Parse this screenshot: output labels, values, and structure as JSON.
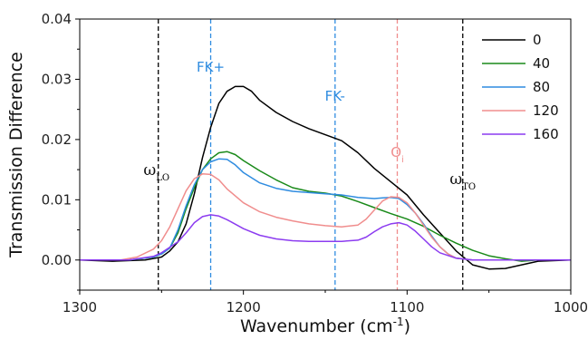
{
  "chart_data": {
    "type": "line",
    "title": "",
    "xlabel": "Wavenumber (cm",
    "xlabel_sup": "-1",
    "xlabel_close": ")",
    "ylabel": "Transmission Difference",
    "xlim": [
      1300,
      1000
    ],
    "ylim": [
      -0.005,
      0.04
    ],
    "x_reversed": true,
    "grid": false,
    "legend_position": "top-right",
    "x_ticks": [
      1300,
      1200,
      1100,
      1000
    ],
    "x_tick_labels": [
      "1300",
      "1200",
      "1100",
      "1000"
    ],
    "y_ticks": [
      0.0,
      0.01,
      0.02,
      0.03,
      0.04
    ],
    "y_tick_labels": [
      "0.00",
      "0.01",
      "0.02",
      "0.03",
      "0.04"
    ],
    "series": [
      {
        "name": "0",
        "color": "#000000",
        "points": [
          [
            1300,
            0
          ],
          [
            1280,
            -0.0002
          ],
          [
            1260,
            0
          ],
          [
            1250,
            0.0005
          ],
          [
            1245,
            0.0015
          ],
          [
            1240,
            0.003
          ],
          [
            1235,
            0.006
          ],
          [
            1230,
            0.011
          ],
          [
            1225,
            0.017
          ],
          [
            1220,
            0.022
          ],
          [
            1215,
            0.026
          ],
          [
            1210,
            0.028
          ],
          [
            1205,
            0.0288
          ],
          [
            1200,
            0.0288
          ],
          [
            1195,
            0.028
          ],
          [
            1190,
            0.0265
          ],
          [
            1180,
            0.0245
          ],
          [
            1170,
            0.023
          ],
          [
            1160,
            0.0218
          ],
          [
            1150,
            0.0208
          ],
          [
            1140,
            0.0198
          ],
          [
            1130,
            0.0178
          ],
          [
            1120,
            0.0152
          ],
          [
            1110,
            0.013
          ],
          [
            1100,
            0.0108
          ],
          [
            1090,
            0.0075
          ],
          [
            1080,
            0.0045
          ],
          [
            1070,
            0.0015
          ],
          [
            1060,
            -0.0008
          ],
          [
            1050,
            -0.0015
          ],
          [
            1040,
            -0.0014
          ],
          [
            1030,
            -0.0008
          ],
          [
            1020,
            -0.0002
          ],
          [
            1000,
            0
          ]
        ]
      },
      {
        "name": "40",
        "color": "#1a8a1a",
        "points": [
          [
            1300,
            0
          ],
          [
            1270,
            0
          ],
          [
            1255,
            0.0005
          ],
          [
            1250,
            0.001
          ],
          [
            1245,
            0.002
          ],
          [
            1240,
            0.0045
          ],
          [
            1235,
            0.0085
          ],
          [
            1230,
            0.012
          ],
          [
            1225,
            0.015
          ],
          [
            1220,
            0.0168
          ],
          [
            1215,
            0.0178
          ],
          [
            1210,
            0.018
          ],
          [
            1205,
            0.0175
          ],
          [
            1200,
            0.0165
          ],
          [
            1190,
            0.0148
          ],
          [
            1180,
            0.0133
          ],
          [
            1170,
            0.012
          ],
          [
            1160,
            0.0114
          ],
          [
            1150,
            0.0111
          ],
          [
            1140,
            0.0106
          ],
          [
            1130,
            0.0097
          ],
          [
            1120,
            0.0087
          ],
          [
            1110,
            0.0077
          ],
          [
            1100,
            0.0068
          ],
          [
            1090,
            0.0056
          ],
          [
            1080,
            0.0041
          ],
          [
            1070,
            0.0028
          ],
          [
            1060,
            0.0016
          ],
          [
            1050,
            0.0007
          ],
          [
            1040,
            0.0002
          ],
          [
            1030,
            -0.0002
          ],
          [
            1020,
            0
          ],
          [
            1000,
            0
          ]
        ]
      },
      {
        "name": "80",
        "color": "#2f8ce0",
        "points": [
          [
            1300,
            0
          ],
          [
            1270,
            0
          ],
          [
            1255,
            0.0005
          ],
          [
            1250,
            0.001
          ],
          [
            1245,
            0.002
          ],
          [
            1240,
            0.005
          ],
          [
            1235,
            0.009
          ],
          [
            1230,
            0.0125
          ],
          [
            1225,
            0.015
          ],
          [
            1220,
            0.0163
          ],
          [
            1215,
            0.0168
          ],
          [
            1210,
            0.0167
          ],
          [
            1205,
            0.0158
          ],
          [
            1200,
            0.0145
          ],
          [
            1190,
            0.0128
          ],
          [
            1180,
            0.0119
          ],
          [
            1170,
            0.0114
          ],
          [
            1160,
            0.0112
          ],
          [
            1150,
            0.011
          ],
          [
            1140,
            0.0108
          ],
          [
            1130,
            0.0104
          ],
          [
            1120,
            0.0102
          ],
          [
            1115,
            0.0103
          ],
          [
            1110,
            0.0104
          ],
          [
            1105,
            0.0102
          ],
          [
            1100,
            0.0092
          ],
          [
            1095,
            0.0078
          ],
          [
            1090,
            0.006
          ],
          [
            1085,
            0.004
          ],
          [
            1080,
            0.0022
          ],
          [
            1075,
            0.001
          ],
          [
            1070,
            0.0003
          ],
          [
            1060,
            0
          ],
          [
            1000,
            0
          ]
        ]
      },
      {
        "name": "120",
        "color": "#f08d8d",
        "points": [
          [
            1300,
            0
          ],
          [
            1275,
            0
          ],
          [
            1265,
            0.0005
          ],
          [
            1255,
            0.0018
          ],
          [
            1250,
            0.0032
          ],
          [
            1245,
            0.0055
          ],
          [
            1240,
            0.0085
          ],
          [
            1235,
            0.0115
          ],
          [
            1230,
            0.0135
          ],
          [
            1225,
            0.0143
          ],
          [
            1220,
            0.0142
          ],
          [
            1215,
            0.0133
          ],
          [
            1210,
            0.0118
          ],
          [
            1200,
            0.0095
          ],
          [
            1190,
            0.008
          ],
          [
            1180,
            0.0071
          ],
          [
            1170,
            0.0065
          ],
          [
            1160,
            0.006
          ],
          [
            1150,
            0.0057
          ],
          [
            1140,
            0.0055
          ],
          [
            1130,
            0.0058
          ],
          [
            1125,
            0.0068
          ],
          [
            1120,
            0.0083
          ],
          [
            1115,
            0.0098
          ],
          [
            1110,
            0.0105
          ],
          [
            1105,
            0.0104
          ],
          [
            1100,
            0.0095
          ],
          [
            1095,
            0.0078
          ],
          [
            1090,
            0.0058
          ],
          [
            1085,
            0.0038
          ],
          [
            1080,
            0.0022
          ],
          [
            1075,
            0.001
          ],
          [
            1070,
            0.0003
          ],
          [
            1060,
            0
          ],
          [
            1000,
            0
          ]
        ]
      },
      {
        "name": "160",
        "color": "#8c3cf0",
        "points": [
          [
            1300,
            0
          ],
          [
            1270,
            0
          ],
          [
            1255,
            0.0006
          ],
          [
            1250,
            0.0012
          ],
          [
            1240,
            0.003
          ],
          [
            1235,
            0.0045
          ],
          [
            1230,
            0.0062
          ],
          [
            1225,
            0.0072
          ],
          [
            1220,
            0.0075
          ],
          [
            1215,
            0.0073
          ],
          [
            1210,
            0.0067
          ],
          [
            1200,
            0.0052
          ],
          [
            1190,
            0.0041
          ],
          [
            1180,
            0.0035
          ],
          [
            1170,
            0.0032
          ],
          [
            1160,
            0.0031
          ],
          [
            1150,
            0.0031
          ],
          [
            1140,
            0.0031
          ],
          [
            1130,
            0.0033
          ],
          [
            1125,
            0.0038
          ],
          [
            1120,
            0.0047
          ],
          [
            1115,
            0.0055
          ],
          [
            1110,
            0.006
          ],
          [
            1105,
            0.0062
          ],
          [
            1100,
            0.0058
          ],
          [
            1095,
            0.0048
          ],
          [
            1090,
            0.0035
          ],
          [
            1085,
            0.0022
          ],
          [
            1080,
            0.0012
          ],
          [
            1070,
            0.0003
          ],
          [
            1060,
            0
          ],
          [
            1000,
            0
          ]
        ]
      }
    ],
    "reference_lines": [
      {
        "name": "omega-lo",
        "x": 1252,
        "color": "#000000",
        "label": "ω",
        "sub": "LO"
      },
      {
        "name": "fk-plus",
        "x": 1220,
        "color": "#2f8ce0",
        "label": "FK+",
        "sub": ""
      },
      {
        "name": "fk-minus",
        "x": 1144,
        "color": "#2f8ce0",
        "label": "FK-",
        "sub": ""
      },
      {
        "name": "oi",
        "x": 1106,
        "color": "#f08d8d",
        "label": "O",
        "sub": "i"
      },
      {
        "name": "omega-to",
        "x": 1066,
        "color": "#000000",
        "label": "ω",
        "sub": "TO"
      }
    ]
  }
}
